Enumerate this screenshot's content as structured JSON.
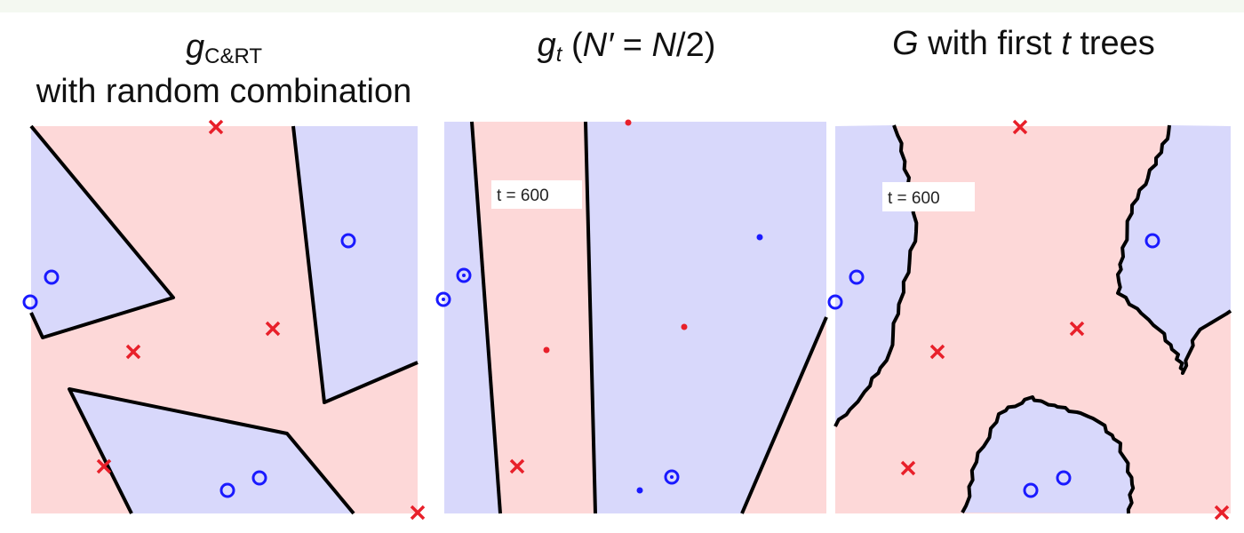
{
  "panels": [
    {
      "title_symbol": "g",
      "title_sub": "C&RT",
      "title_line2": "with random combination"
    },
    {
      "title_symbol": "g",
      "title_sub": "t",
      "title_rest_open": " (",
      "title_n": "N′",
      "title_eq": " = ",
      "title_n2": "N",
      "title_rest_close": "/2)",
      "annotation": "t = 600"
    },
    {
      "title_symbol": "G",
      "title_mid": " with first ",
      "title_t": "t",
      "title_end": " trees",
      "annotation": "t = 600"
    }
  ],
  "colors": {
    "region_positive": "#d8d8fb",
    "region_negative": "#fdd8d8",
    "marker_o": "#1a1aff",
    "marker_x": "#e8202a",
    "boundary": "#000000"
  }
}
